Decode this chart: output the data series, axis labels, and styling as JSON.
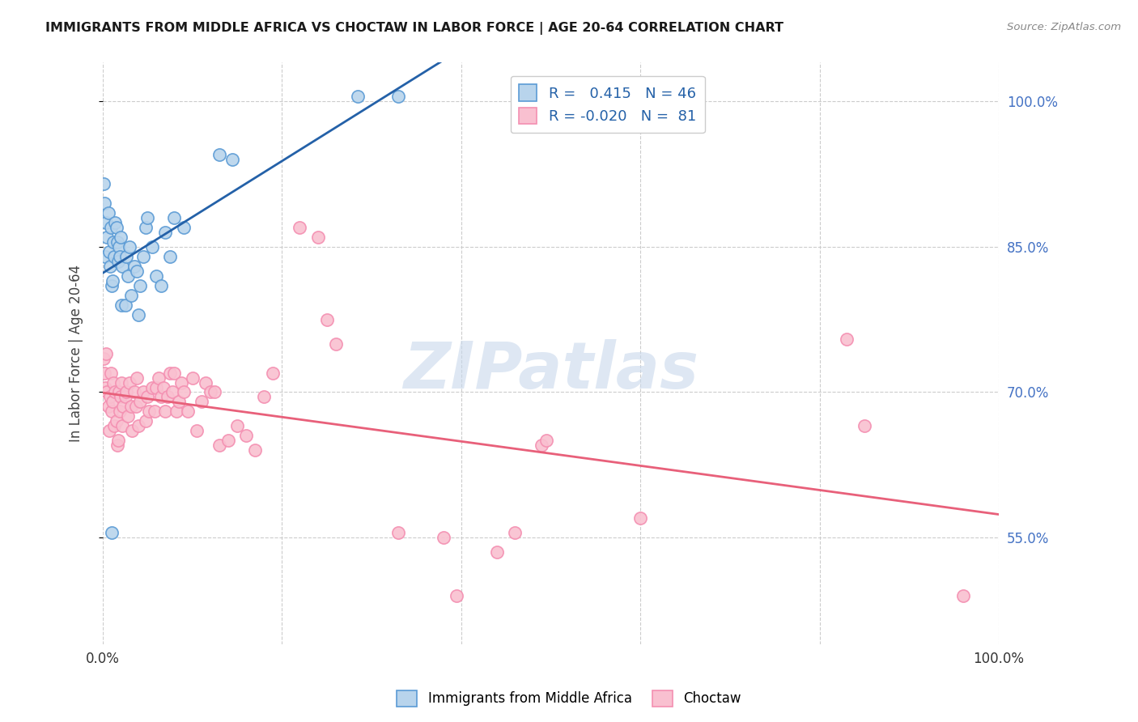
{
  "title": "IMMIGRANTS FROM MIDDLE AFRICA VS CHOCTAW IN LABOR FORCE | AGE 20-64 CORRELATION CHART",
  "source": "Source: ZipAtlas.com",
  "ylabel": "In Labor Force | Age 20-64",
  "xmin": 0.0,
  "xmax": 1.0,
  "ymin": 0.44,
  "ymax": 1.04,
  "yticks": [
    0.55,
    0.7,
    0.85,
    1.0
  ],
  "ytick_labels": [
    "55.0%",
    "70.0%",
    "85.0%",
    "100.0%"
  ],
  "xticks": [
    0.0,
    0.2,
    0.4,
    0.6,
    0.8,
    1.0
  ],
  "xtick_labels": [
    "0.0%",
    "",
    "",
    "",
    "",
    "100.0%"
  ],
  "blue_R": 0.415,
  "blue_N": 46,
  "pink_R": -0.02,
  "pink_N": 81,
  "blue_color": "#b8d4ec",
  "pink_color": "#f9c0d0",
  "blue_edge_color": "#5b9bd5",
  "pink_edge_color": "#f48fb1",
  "blue_line_color": "#2461a8",
  "pink_line_color": "#e8607a",
  "blue_scatter": [
    [
      0.001,
      0.915
    ],
    [
      0.002,
      0.895
    ],
    [
      0.003,
      0.84
    ],
    [
      0.004,
      0.875
    ],
    [
      0.005,
      0.86
    ],
    [
      0.006,
      0.885
    ],
    [
      0.007,
      0.845
    ],
    [
      0.008,
      0.83
    ],
    [
      0.009,
      0.87
    ],
    [
      0.01,
      0.81
    ],
    [
      0.011,
      0.815
    ],
    [
      0.012,
      0.855
    ],
    [
      0.013,
      0.84
    ],
    [
      0.014,
      0.875
    ],
    [
      0.015,
      0.87
    ],
    [
      0.016,
      0.855
    ],
    [
      0.017,
      0.835
    ],
    [
      0.018,
      0.85
    ],
    [
      0.019,
      0.84
    ],
    [
      0.02,
      0.86
    ],
    [
      0.021,
      0.79
    ],
    [
      0.022,
      0.83
    ],
    [
      0.025,
      0.79
    ],
    [
      0.026,
      0.84
    ],
    [
      0.028,
      0.82
    ],
    [
      0.03,
      0.85
    ],
    [
      0.032,
      0.8
    ],
    [
      0.035,
      0.83
    ],
    [
      0.038,
      0.825
    ],
    [
      0.04,
      0.78
    ],
    [
      0.042,
      0.81
    ],
    [
      0.045,
      0.84
    ],
    [
      0.048,
      0.87
    ],
    [
      0.05,
      0.88
    ],
    [
      0.055,
      0.85
    ],
    [
      0.06,
      0.82
    ],
    [
      0.065,
      0.81
    ],
    [
      0.07,
      0.865
    ],
    [
      0.075,
      0.84
    ],
    [
      0.08,
      0.88
    ],
    [
      0.09,
      0.87
    ],
    [
      0.01,
      0.555
    ],
    [
      0.285,
      1.005
    ],
    [
      0.33,
      1.005
    ],
    [
      0.13,
      0.945
    ],
    [
      0.145,
      0.94
    ]
  ],
  "pink_scatter": [
    [
      0.001,
      0.735
    ],
    [
      0.002,
      0.72
    ],
    [
      0.003,
      0.705
    ],
    [
      0.004,
      0.74
    ],
    [
      0.005,
      0.7
    ],
    [
      0.006,
      0.685
    ],
    [
      0.007,
      0.66
    ],
    [
      0.008,
      0.695
    ],
    [
      0.009,
      0.72
    ],
    [
      0.01,
      0.68
    ],
    [
      0.011,
      0.69
    ],
    [
      0.012,
      0.71
    ],
    [
      0.013,
      0.665
    ],
    [
      0.014,
      0.7
    ],
    [
      0.015,
      0.67
    ],
    [
      0.016,
      0.645
    ],
    [
      0.017,
      0.65
    ],
    [
      0.018,
      0.7
    ],
    [
      0.019,
      0.68
    ],
    [
      0.02,
      0.695
    ],
    [
      0.021,
      0.71
    ],
    [
      0.022,
      0.665
    ],
    [
      0.023,
      0.685
    ],
    [
      0.025,
      0.695
    ],
    [
      0.026,
      0.7
    ],
    [
      0.028,
      0.675
    ],
    [
      0.03,
      0.71
    ],
    [
      0.032,
      0.685
    ],
    [
      0.033,
      0.66
    ],
    [
      0.035,
      0.7
    ],
    [
      0.037,
      0.685
    ],
    [
      0.038,
      0.715
    ],
    [
      0.04,
      0.665
    ],
    [
      0.042,
      0.69
    ],
    [
      0.045,
      0.7
    ],
    [
      0.048,
      0.67
    ],
    [
      0.05,
      0.695
    ],
    [
      0.052,
      0.68
    ],
    [
      0.055,
      0.705
    ],
    [
      0.058,
      0.68
    ],
    [
      0.06,
      0.705
    ],
    [
      0.062,
      0.715
    ],
    [
      0.065,
      0.695
    ],
    [
      0.068,
      0.705
    ],
    [
      0.07,
      0.68
    ],
    [
      0.072,
      0.695
    ],
    [
      0.075,
      0.72
    ],
    [
      0.078,
      0.7
    ],
    [
      0.08,
      0.72
    ],
    [
      0.082,
      0.68
    ],
    [
      0.085,
      0.69
    ],
    [
      0.088,
      0.71
    ],
    [
      0.09,
      0.7
    ],
    [
      0.095,
      0.68
    ],
    [
      0.1,
      0.715
    ],
    [
      0.105,
      0.66
    ],
    [
      0.11,
      0.69
    ],
    [
      0.115,
      0.71
    ],
    [
      0.12,
      0.7
    ],
    [
      0.125,
      0.7
    ],
    [
      0.13,
      0.645
    ],
    [
      0.14,
      0.65
    ],
    [
      0.15,
      0.665
    ],
    [
      0.16,
      0.655
    ],
    [
      0.17,
      0.64
    ],
    [
      0.18,
      0.695
    ],
    [
      0.19,
      0.72
    ],
    [
      0.22,
      0.87
    ],
    [
      0.24,
      0.86
    ],
    [
      0.25,
      0.775
    ],
    [
      0.26,
      0.75
    ],
    [
      0.33,
      0.555
    ],
    [
      0.38,
      0.55
    ],
    [
      0.395,
      0.49
    ],
    [
      0.44,
      0.535
    ],
    [
      0.46,
      0.555
    ],
    [
      0.49,
      0.645
    ],
    [
      0.495,
      0.65
    ],
    [
      0.6,
      0.57
    ],
    [
      0.83,
      0.755
    ],
    [
      0.85,
      0.665
    ],
    [
      0.96,
      0.49
    ]
  ],
  "watermark": "ZIPatlas",
  "watermark_color": "#c8d8ec"
}
